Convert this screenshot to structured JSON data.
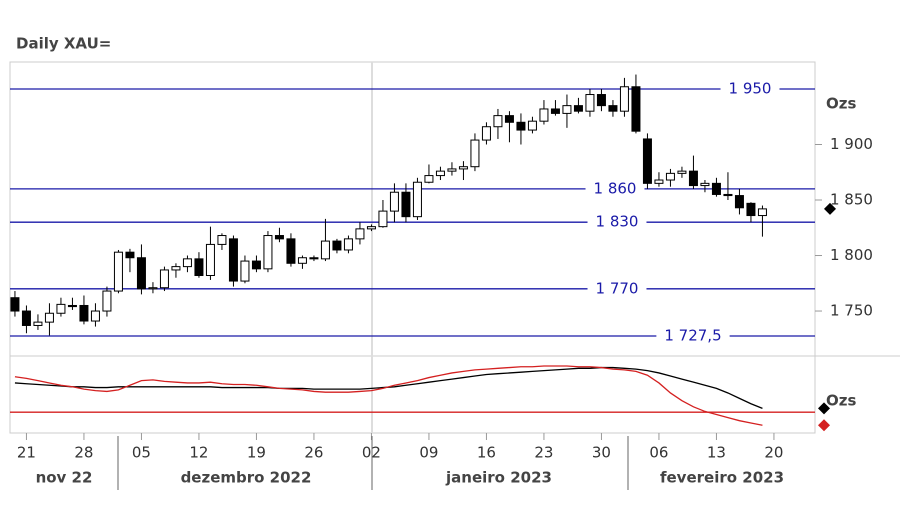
{
  "chart_data": [
    {
      "type": "candlestick",
      "title": "Daily XAU=",
      "y_label": "Ozs",
      "open": [
        1762,
        1750,
        1737,
        1740,
        1748,
        1755,
        1755,
        1741,
        1750,
        1768,
        1803,
        1798,
        1770,
        1771,
        1787,
        1790,
        1797,
        1782,
        1810,
        1815,
        1777,
        1795,
        1788,
        1818,
        1815,
        1793,
        1798,
        1797,
        1813,
        1805,
        1815,
        1824,
        1826,
        1840,
        1857,
        1835,
        1866,
        1872,
        1876,
        1878,
        1880,
        1904,
        1916,
        1926,
        1920,
        1913,
        1921,
        1932,
        1928,
        1935,
        1930,
        1945,
        1935,
        1930,
        1952,
        1905,
        1865,
        1868,
        1874,
        1876,
        1863,
        1865,
        1855,
        1854,
        1847,
        1836
      ],
      "high": [
        1768,
        1755,
        1747,
        1757,
        1762,
        1762,
        1764,
        1757,
        1772,
        1805,
        1806,
        1810,
        1776,
        1790,
        1793,
        1800,
        1803,
        1826,
        1820,
        1818,
        1800,
        1800,
        1822,
        1825,
        1820,
        1800,
        1800,
        1833,
        1815,
        1818,
        1830,
        1828,
        1850,
        1865,
        1865,
        1870,
        1882,
        1880,
        1884,
        1885,
        1910,
        1920,
        1932,
        1930,
        1928,
        1925,
        1940,
        1940,
        1945,
        1942,
        1950,
        1950,
        1940,
        1960,
        1963,
        1910,
        1875,
        1878,
        1880,
        1890,
        1868,
        1870,
        1875,
        1860,
        1848,
        1845
      ],
      "low": [
        1745,
        1730,
        1733,
        1728,
        1745,
        1751,
        1738,
        1736,
        1745,
        1766,
        1785,
        1765,
        1766,
        1768,
        1780,
        1785,
        1780,
        1778,
        1805,
        1772,
        1775,
        1785,
        1785,
        1812,
        1790,
        1788,
        1795,
        1795,
        1802,
        1802,
        1810,
        1822,
        1825,
        1830,
        1830,
        1832,
        1865,
        1868,
        1872,
        1868,
        1876,
        1900,
        1905,
        1902,
        1900,
        1910,
        1918,
        1926,
        1915,
        1928,
        1925,
        1930,
        1925,
        1925,
        1910,
        1860,
        1862,
        1862,
        1870,
        1860,
        1857,
        1853,
        1850,
        1837,
        1830,
        1817
      ],
      "close": [
        1750,
        1737,
        1740,
        1748,
        1756,
        1754,
        1741,
        1750,
        1768,
        1803,
        1798,
        1770,
        1771,
        1787,
        1790,
        1797,
        1782,
        1810,
        1818,
        1777,
        1795,
        1788,
        1818,
        1815,
        1793,
        1798,
        1797,
        1813,
        1805,
        1815,
        1824,
        1826,
        1840,
        1857,
        1835,
        1866,
        1872,
        1876,
        1878,
        1880,
        1904,
        1916,
        1926,
        1920,
        1913,
        1921,
        1932,
        1928,
        1935,
        1930,
        1945,
        1935,
        1930,
        1952,
        1912,
        1865,
        1868,
        1874,
        1876,
        1863,
        1865,
        1855,
        1854,
        1843,
        1836,
        1842
      ],
      "ylim": [
        1712.2,
        1974.3
      ],
      "yticks": [
        {
          "value": 1750,
          "label": "1 750"
        },
        {
          "value": 1800,
          "label": "1 800"
        },
        {
          "value": 1850,
          "label": "1 850"
        },
        {
          "value": 1900,
          "label": "1 900"
        }
      ],
      "levels": [
        {
          "value": 1950,
          "label": "1 950"
        },
        {
          "value": 1860,
          "label": "1 860"
        },
        {
          "value": 1830,
          "label": "1 830"
        },
        {
          "value": 1770,
          "label": "1 770"
        },
        {
          "value": 1727.5,
          "label": "1 727,5"
        }
      ],
      "xlim": [
        -0.43,
        69.57
      ],
      "xticks": [
        {
          "value": 1,
          "label": "21"
        },
        {
          "value": 6,
          "label": "28"
        },
        {
          "value": 11,
          "label": "05"
        },
        {
          "value": 16,
          "label": "12"
        },
        {
          "value": 21,
          "label": "19"
        },
        {
          "value": 26,
          "label": "26"
        },
        {
          "value": 31,
          "label": "02"
        },
        {
          "value": 36,
          "label": "09"
        },
        {
          "value": 41,
          "label": "16"
        },
        {
          "value": 46,
          "label": "23"
        },
        {
          "value": 51,
          "label": "30"
        },
        {
          "value": 56,
          "label": "06"
        },
        {
          "value": 61,
          "label": "13"
        },
        {
          "value": 66,
          "label": "20"
        }
      ],
      "months": [
        "nov 22",
        "dezembro 2022",
        "janeiro 2023",
        "fevereiro 2023"
      ]
    },
    {
      "type": "line",
      "y_label": "Ozs",
      "ylim": [
        0,
        100
      ],
      "xlim": [
        -0.43,
        69.57
      ],
      "reference": 27,
      "reference_color": "#d42020",
      "series": [
        {
          "color": "#000000",
          "values": [
            65,
            64,
            63,
            62,
            61,
            60,
            60,
            59,
            59,
            60,
            60,
            60,
            60,
            60,
            60,
            60,
            60,
            60,
            59,
            59,
            59,
            59,
            59,
            58,
            58,
            58,
            57,
            57,
            57,
            57,
            57,
            58,
            59,
            60,
            62,
            64,
            66,
            68,
            70,
            72,
            74,
            76,
            77,
            78,
            79,
            80,
            81,
            82,
            83,
            84,
            84,
            85,
            85,
            84,
            83,
            81,
            78,
            74,
            70,
            66,
            62,
            58,
            52,
            45,
            38,
            32
          ]
        },
        {
          "color": "#d42020",
          "values": [
            73,
            71,
            68,
            65,
            62,
            60,
            57,
            55,
            54,
            56,
            62,
            68,
            69,
            67,
            66,
            65,
            65,
            66,
            64,
            63,
            63,
            62,
            60,
            58,
            57,
            56,
            54,
            53,
            53,
            53,
            54,
            55,
            58,
            62,
            65,
            68,
            72,
            75,
            78,
            80,
            82,
            83,
            84,
            85,
            86,
            86,
            87,
            87,
            87,
            86,
            86,
            85,
            83,
            82,
            80,
            75,
            65,
            52,
            42,
            34,
            28,
            24,
            20,
            16,
            13,
            10
          ]
        }
      ]
    }
  ]
}
